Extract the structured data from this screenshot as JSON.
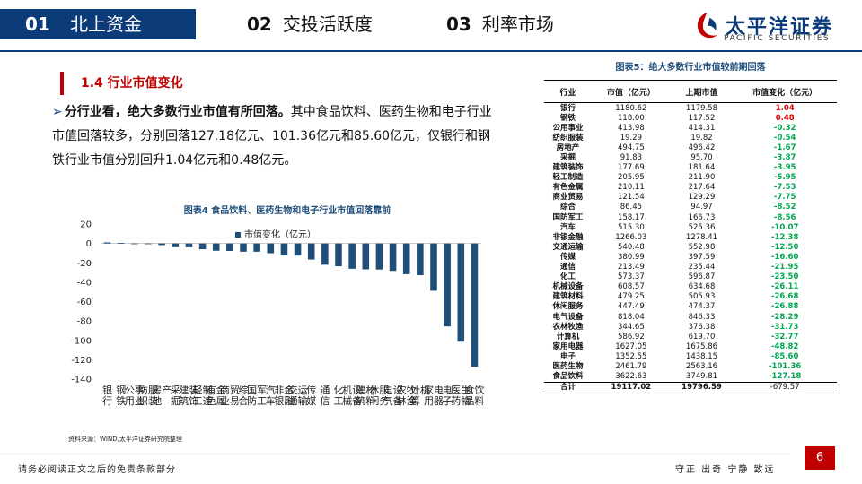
{
  "nav": {
    "tabs": [
      {
        "num": "01",
        "label": "北上资金"
      },
      {
        "num": "02",
        "label": "交投活跃度"
      },
      {
        "num": "03",
        "label": "利率市场"
      }
    ]
  },
  "logo": {
    "name": "太平洋证券",
    "subtitle": "PACIFIC SECURITIES"
  },
  "section": {
    "title": "1.4  行业市值变化"
  },
  "paragraph": {
    "lead": "分行业看，绝大多数行业市值有所回落。",
    "body": "其中食品饮料、医药生物和电子行业市值回落较多，分别回落127.18亿元、101.36亿元和85.60亿元，仅银行和钢铁行业市值分别回升1.04亿元和0.48亿元。"
  },
  "chart_title": "图表4 食品饮料、医药生物和电子行业市值回落靠前",
  "source": "资料来源：WIND,太平洋证券研究院整理",
  "chart_data": {
    "type": "bar",
    "series": [
      {
        "name": "市值变化（亿元）",
        "color": "#1f4e79"
      }
    ],
    "categories": [
      "银行",
      "钢铁",
      "公用事业",
      "纺织服装",
      "房地产",
      "采掘",
      "建筑装饰",
      "轻工制造",
      "有色金属",
      "商业贸易",
      "综合",
      "国防军工",
      "汽车",
      "非银金融",
      "交通运输",
      "传媒",
      "通信",
      "化工",
      "机械设备",
      "建筑材料",
      "休闲服务",
      "电气设备",
      "农林牧渔",
      "计算机",
      "家用电器",
      "电子",
      "医药生物",
      "食品饮料"
    ],
    "values": [
      1.04,
      0.48,
      -0.32,
      -0.54,
      -1.67,
      -3.87,
      -3.95,
      -5.95,
      -7.53,
      -7.75,
      -8.52,
      -8.56,
      -10.07,
      -12.38,
      -12.5,
      -16.6,
      -21.95,
      -23.5,
      -26.11,
      -26.68,
      -26.88,
      -28.29,
      -31.73,
      -32.77,
      -48.82,
      -85.6,
      -101.36,
      -127.18
    ],
    "ylim": [
      -140,
      20
    ],
    "yticks": [
      20,
      0,
      -20,
      -40,
      -60,
      -80,
      -100,
      -120,
      -140
    ],
    "legend": "top-center",
    "grid": false
  },
  "table": {
    "title": "图表5：绝大多数行业市值较前期回落",
    "headers": [
      "行业",
      "市值（亿元）",
      "上期市值",
      "市值变化（亿元）"
    ],
    "rows": [
      [
        "银行",
        "1180.62",
        "1179.58",
        "1.04"
      ],
      [
        "钢铁",
        "118.00",
        "117.52",
        "0.48"
      ],
      [
        "公用事业",
        "413.98",
        "414.31",
        "-0.32"
      ],
      [
        "纺织服装",
        "19.29",
        "19.82",
        "-0.54"
      ],
      [
        "房地产",
        "494.75",
        "496.42",
        "-1.67"
      ],
      [
        "采掘",
        "91.83",
        "95.70",
        "-3.87"
      ],
      [
        "建筑装饰",
        "177.69",
        "181.64",
        "-3.95"
      ],
      [
        "轻工制造",
        "205.95",
        "211.90",
        "-5.95"
      ],
      [
        "有色金属",
        "210.11",
        "217.64",
        "-7.53"
      ],
      [
        "商业贸易",
        "121.54",
        "129.29",
        "-7.75"
      ],
      [
        "综合",
        "86.45",
        "94.97",
        "-8.52"
      ],
      [
        "国防军工",
        "158.17",
        "166.73",
        "-8.56"
      ],
      [
        "汽车",
        "515.30",
        "525.36",
        "-10.07"
      ],
      [
        "非银金融",
        "1266.03",
        "1278.41",
        "-12.38"
      ],
      [
        "交通运输",
        "540.48",
        "552.98",
        "-12.50"
      ],
      [
        "传媒",
        "380.99",
        "397.59",
        "-16.60"
      ],
      [
        "通信",
        "213.49",
        "235.44",
        "-21.95"
      ],
      [
        "化工",
        "573.37",
        "596.87",
        "-23.50"
      ],
      [
        "机械设备",
        "608.57",
        "634.68",
        "-26.11"
      ],
      [
        "建筑材料",
        "479.25",
        "505.93",
        "-26.68"
      ],
      [
        "休闲服务",
        "447.49",
        "474.37",
        "-26.88"
      ],
      [
        "电气设备",
        "818.04",
        "846.33",
        "-28.29"
      ],
      [
        "农林牧渔",
        "344.65",
        "376.38",
        "-31.73"
      ],
      [
        "计算机",
        "586.92",
        "619.70",
        "-32.77"
      ],
      [
        "家用电器",
        "1627.05",
        "1675.86",
        "-48.82"
      ],
      [
        "电子",
        "1352.55",
        "1438.15",
        "-85.60"
      ],
      [
        "医药生物",
        "2461.79",
        "2563.16",
        "-101.36"
      ],
      [
        "食品饮料",
        "3622.63",
        "3749.81",
        "-127.18"
      ]
    ],
    "total": [
      "合计",
      "19117.02",
      "19796.59",
      "-679.57"
    ]
  },
  "footer": {
    "disclaimer": "请务必阅读正文之后的免责条款部分",
    "motto": "守正  出奇  宁静  致远",
    "page": "6"
  },
  "colors": {
    "navy": "#0c3b7a",
    "red": "#c00000",
    "bar": "#1f4e79",
    "positive": "#e00000",
    "negative": "#00a651"
  }
}
